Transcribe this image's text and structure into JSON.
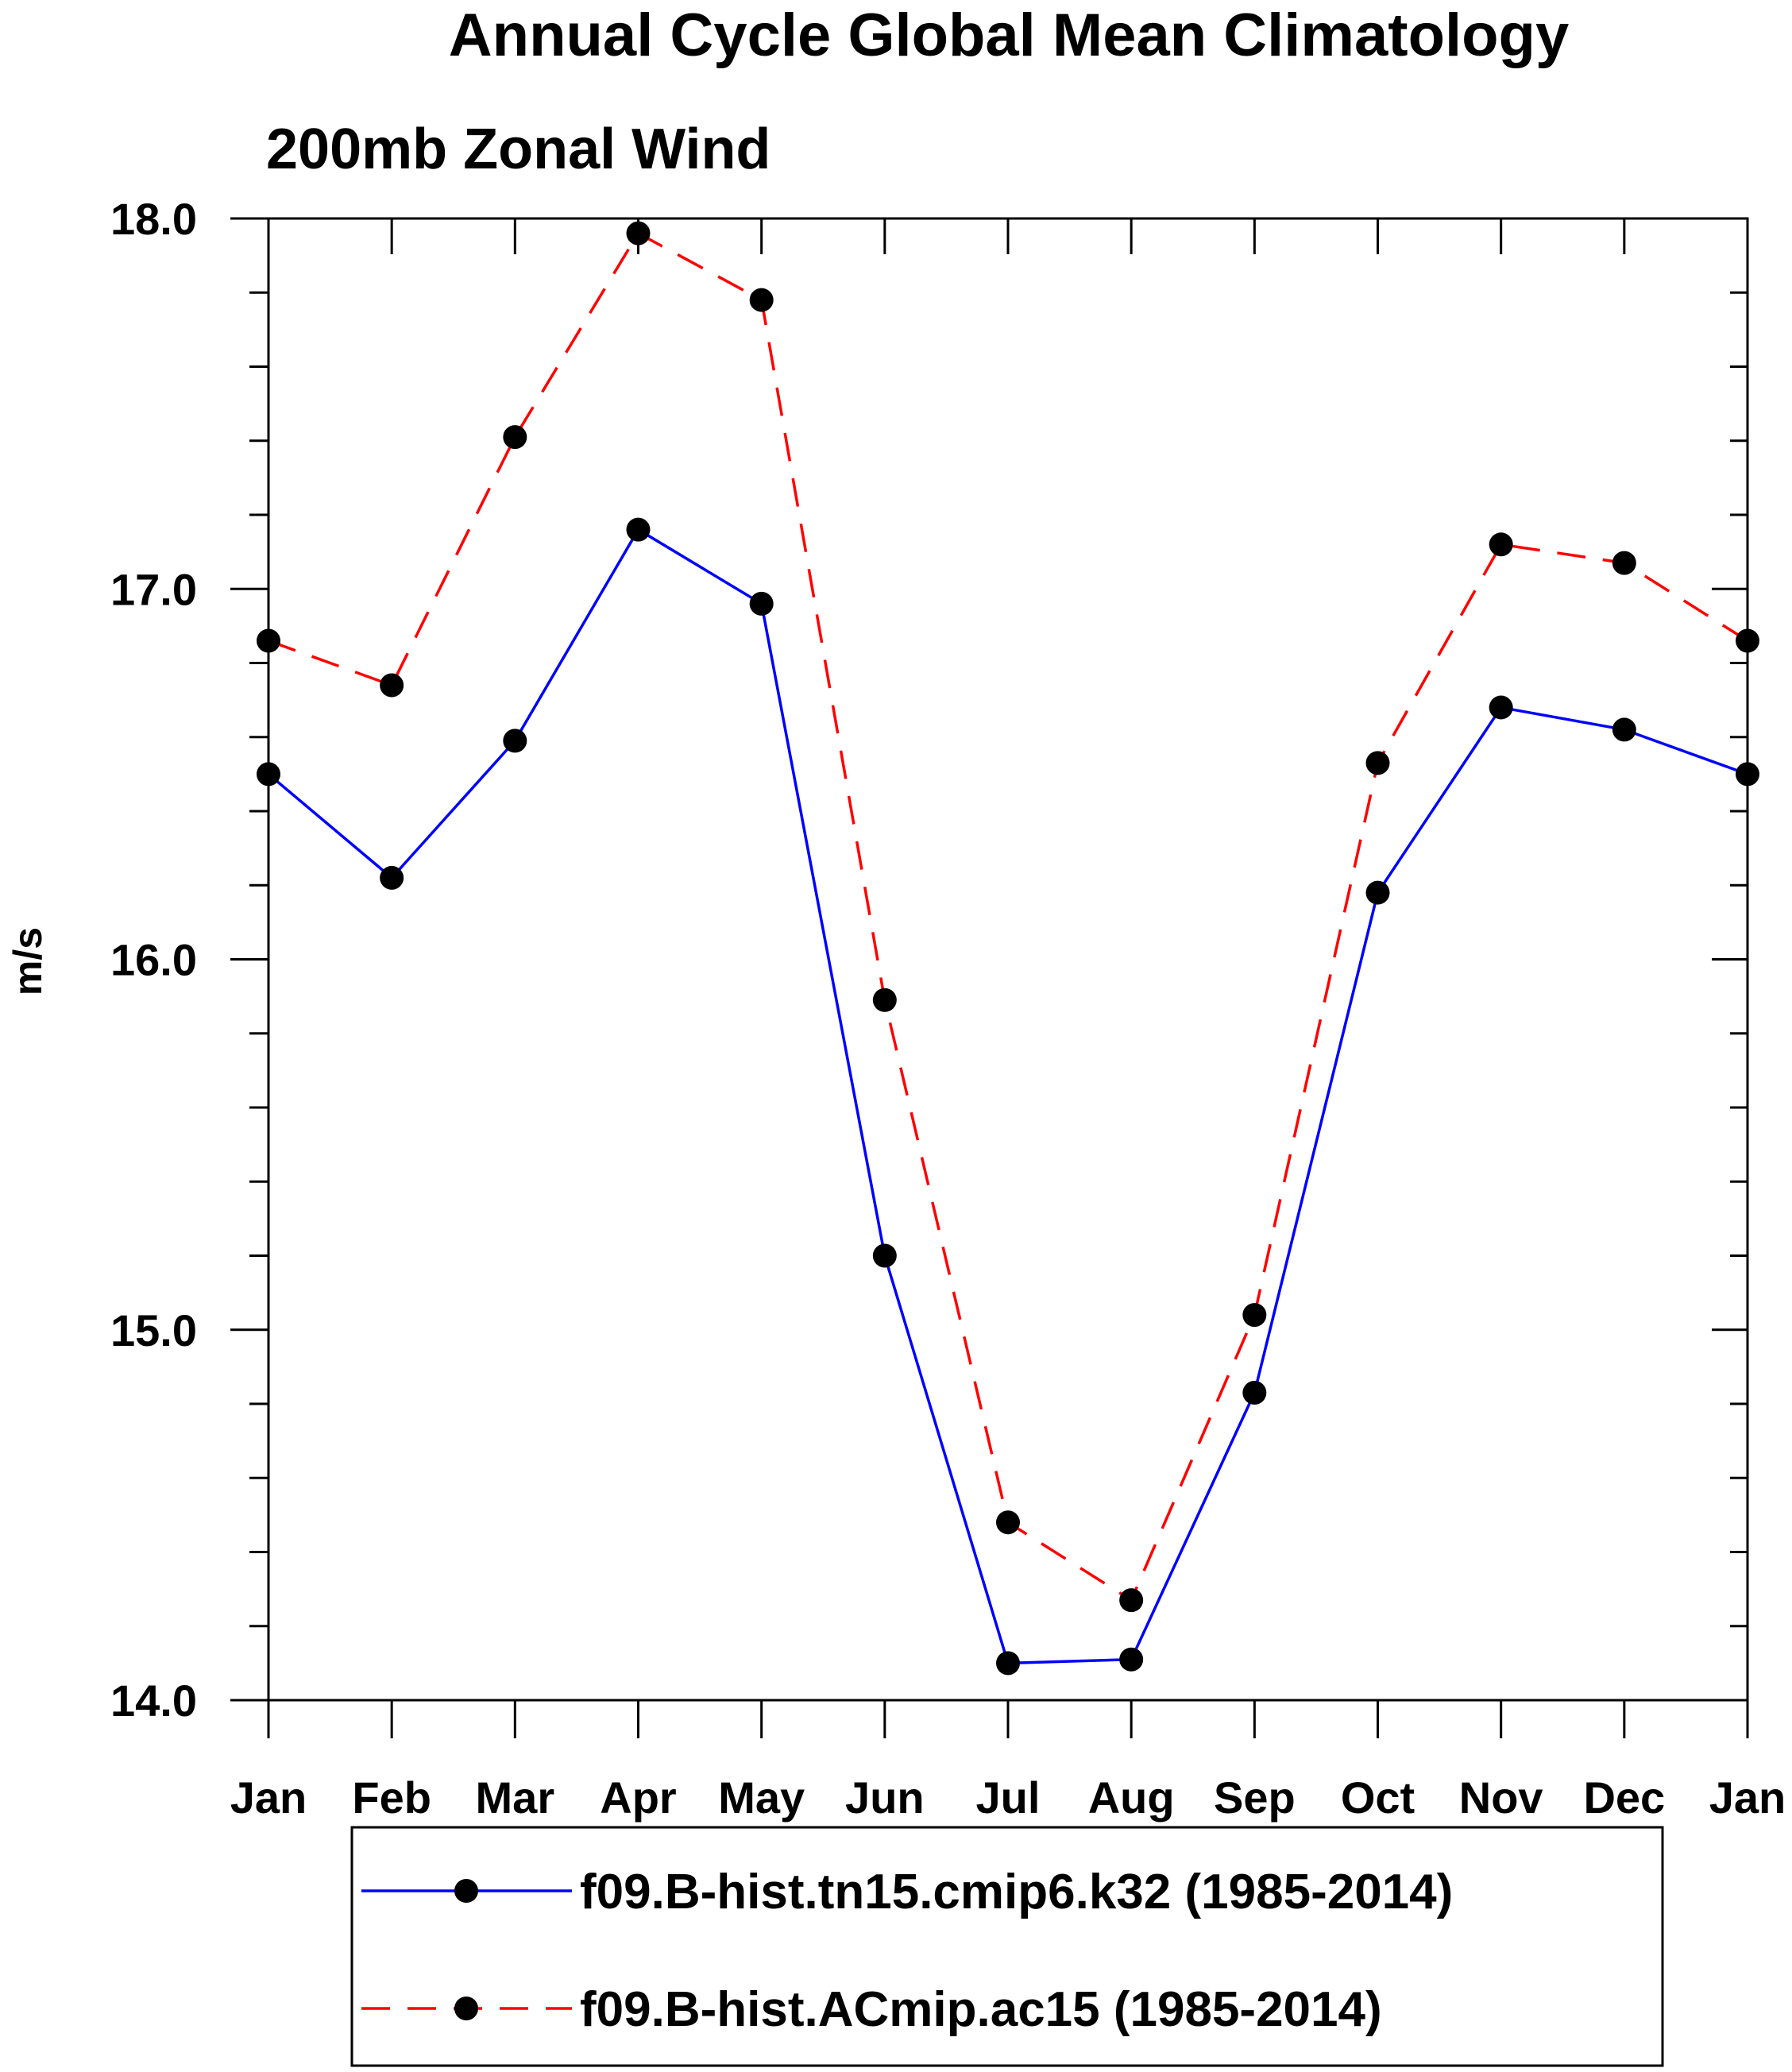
{
  "chart_data": {
    "type": "line",
    "title": "Annual Cycle Global Mean Climatology",
    "subtitle": "200mb Zonal Wind",
    "ylabel": "m/s",
    "xlabel": "",
    "ylim": [
      14.0,
      18.0
    ],
    "y_ticks": [
      "18.0",
      "17.0",
      "16.0",
      "15.0",
      "14.0"
    ],
    "y_tick_values": [
      18.0,
      17.0,
      16.0,
      15.0,
      14.0
    ],
    "categories": [
      "Jan",
      "Feb",
      "Mar",
      "Apr",
      "May",
      "Jun",
      "Jul",
      "Aug",
      "Sep",
      "Oct",
      "Nov",
      "Dec",
      "Jan"
    ],
    "series": [
      {
        "name": "f09.B-hist.tn15.cmip6.k32 (1985-2014)",
        "color": "#0000ff",
        "dash": "solid",
        "values": [
          16.5,
          16.22,
          16.59,
          17.16,
          16.96,
          15.2,
          14.1,
          14.11,
          14.83,
          16.18,
          16.68,
          16.62,
          16.5
        ]
      },
      {
        "name": "f09.B-hist.ACmip.ac15 (1985-2014)",
        "color": "#ff0000",
        "dash": "dashed",
        "values": [
          16.86,
          16.74,
          17.41,
          17.96,
          17.78,
          15.89,
          14.48,
          14.27,
          15.04,
          16.53,
          17.12,
          17.07,
          16.86
        ]
      }
    ],
    "legend_position": "bottom"
  }
}
